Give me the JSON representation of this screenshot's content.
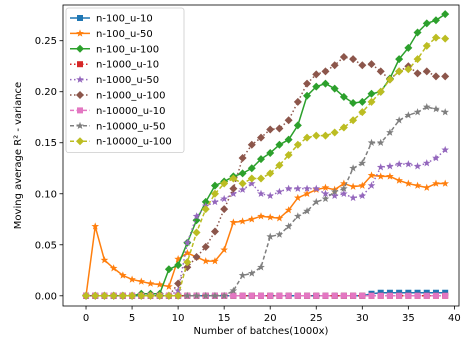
{
  "chart_data": {
    "type": "line",
    "xlabel": "Number of batches(1000x)",
    "ylabel": "Moving average R² - variance",
    "xlim": [
      -2.5,
      40.5
    ],
    "ylim": [
      -0.01,
      0.285
    ],
    "xticks": [
      0,
      5,
      10,
      15,
      20,
      25,
      30,
      35,
      40
    ],
    "xtick_labels": [
      "0",
      "5",
      "10",
      "15",
      "20",
      "25",
      "30",
      "35",
      "40"
    ],
    "yticks": [
      0.0,
      0.05,
      0.1,
      0.15,
      0.2,
      0.25
    ],
    "ytick_labels": [
      "0.00",
      "0.05",
      "0.10",
      "0.15",
      "0.20",
      "0.25"
    ],
    "grid": false,
    "legend_position": "top-left",
    "x": [
      0,
      1,
      2,
      3,
      4,
      5,
      6,
      7,
      8,
      9,
      10,
      11,
      12,
      13,
      14,
      15,
      16,
      17,
      18,
      19,
      20,
      21,
      22,
      23,
      24,
      25,
      26,
      27,
      28,
      29,
      30,
      31,
      32,
      33,
      34,
      35,
      36,
      37,
      38,
      39
    ],
    "series": [
      {
        "name": "n-100_u-10",
        "color": "#1f77b4",
        "marker": "square",
        "dash": "solid",
        "values": [
          0,
          0,
          0,
          0,
          0,
          0,
          0,
          0,
          0,
          0,
          0,
          0,
          0,
          0,
          0,
          0,
          0,
          0,
          0,
          0,
          0,
          0,
          0,
          0,
          0,
          0,
          0,
          0,
          0,
          0,
          0,
          0.002,
          0.003,
          0.003,
          0.003,
          0.003,
          0.003,
          0.003,
          0.003,
          0.003
        ]
      },
      {
        "name": "n-100_u-50",
        "color": "#ff7f0e",
        "marker": "star",
        "dash": "solid",
        "values": [
          0,
          0.068,
          0.035,
          0.027,
          0.02,
          0.016,
          0.014,
          0.012,
          0.011,
          0.009,
          0.036,
          0.042,
          0.038,
          0.034,
          0.034,
          0.045,
          0.072,
          0.073,
          0.075,
          0.078,
          0.077,
          0.076,
          0.084,
          0.096,
          0.1,
          0.104,
          0.106,
          0.104,
          0.11,
          0.107,
          0.108,
          0.118,
          0.117,
          0.117,
          0.113,
          0.11,
          0.108,
          0.106,
          0.11,
          0.11
        ]
      },
      {
        "name": "n-100_u-100",
        "color": "#2ca02c",
        "marker": "diamond",
        "dash": "solid",
        "values": [
          0,
          0,
          0,
          0,
          0,
          0,
          0.002,
          0.002,
          0.002,
          0.026,
          0.03,
          0.052,
          0.074,
          0.092,
          0.108,
          0.112,
          0.117,
          0.12,
          0.125,
          0.134,
          0.14,
          0.148,
          0.153,
          0.167,
          0.196,
          0.205,
          0.208,
          0.203,
          0.195,
          0.189,
          0.19,
          0.198,
          0.2,
          0.213,
          0.232,
          0.243,
          0.258,
          0.267,
          0.27,
          0.276
        ]
      },
      {
        "name": "n-1000_u-10",
        "color": "#d62728",
        "marker": "square",
        "dash": "dotted",
        "values": [
          0,
          0,
          0,
          0,
          0,
          0,
          0,
          0,
          0,
          0,
          0,
          0,
          0,
          0,
          0,
          0,
          0,
          0,
          0,
          0,
          0,
          0,
          0,
          0,
          0,
          0,
          0,
          0,
          0,
          0,
          0,
          0,
          0,
          0,
          0,
          0,
          0,
          0,
          0,
          0
        ]
      },
      {
        "name": "n-1000_u-50",
        "color": "#9467bd",
        "marker": "star",
        "dash": "dotted",
        "values": [
          0,
          0,
          0,
          0,
          0,
          0,
          0,
          0,
          0,
          0,
          0.005,
          0.052,
          0.078,
          0.088,
          0.092,
          0.095,
          0.1,
          0.104,
          0.11,
          0.1,
          0.098,
          0.102,
          0.105,
          0.105,
          0.105,
          0.105,
          0.1,
          0.098,
          0.1,
          0.096,
          0.098,
          0.108,
          0.126,
          0.127,
          0.129,
          0.129,
          0.127,
          0.13,
          0.135,
          0.143
        ]
      },
      {
        "name": "n-1000_u-100",
        "color": "#8c564b",
        "marker": "diamond",
        "dash": "dotted",
        "values": [
          0,
          0,
          0,
          0,
          0,
          0,
          0,
          0,
          0,
          0,
          0.012,
          0.028,
          0.038,
          0.048,
          0.063,
          0.085,
          0.105,
          0.135,
          0.148,
          0.155,
          0.163,
          0.164,
          0.172,
          0.19,
          0.208,
          0.217,
          0.22,
          0.226,
          0.234,
          0.232,
          0.226,
          0.227,
          0.22,
          0.212,
          0.22,
          0.225,
          0.218,
          0.22,
          0.215,
          0.215
        ]
      },
      {
        "name": "n-10000_u-10",
        "color": "#e377c2",
        "marker": "square",
        "dash": "dashed",
        "values": [
          0,
          0,
          0,
          0,
          0,
          0,
          0,
          0,
          0,
          0,
          0,
          0,
          0,
          0,
          0,
          0,
          0,
          0,
          0,
          0,
          0,
          0,
          0,
          0,
          0,
          0,
          0,
          0,
          0,
          0,
          0,
          0,
          0,
          0,
          0,
          0,
          0,
          0,
          0,
          0
        ]
      },
      {
        "name": "n-10000_u-50",
        "color": "#7f7f7f",
        "marker": "star",
        "dash": "dashed",
        "values": [
          0,
          0,
          0,
          0,
          0,
          0,
          0,
          0,
          0,
          0,
          0,
          0,
          0,
          0,
          0,
          0,
          0.005,
          0.02,
          0.022,
          0.028,
          0.058,
          0.06,
          0.068,
          0.078,
          0.083,
          0.092,
          0.095,
          0.102,
          0.105,
          0.125,
          0.13,
          0.15,
          0.15,
          0.16,
          0.172,
          0.177,
          0.18,
          0.185,
          0.183,
          0.18
        ]
      },
      {
        "name": "n-10000_u-100",
        "color": "#bcbd22",
        "marker": "diamond",
        "dash": "dashed",
        "values": [
          0,
          0,
          0,
          0,
          0,
          0,
          0,
          0,
          0,
          0,
          0,
          0.033,
          0.062,
          0.085,
          0.1,
          0.11,
          0.115,
          0.11,
          0.115,
          0.115,
          0.12,
          0.128,
          0.138,
          0.148,
          0.155,
          0.157,
          0.157,
          0.16,
          0.165,
          0.172,
          0.18,
          0.19,
          0.2,
          0.212,
          0.22,
          0.222,
          0.232,
          0.245,
          0.253,
          0.252
        ]
      }
    ]
  }
}
